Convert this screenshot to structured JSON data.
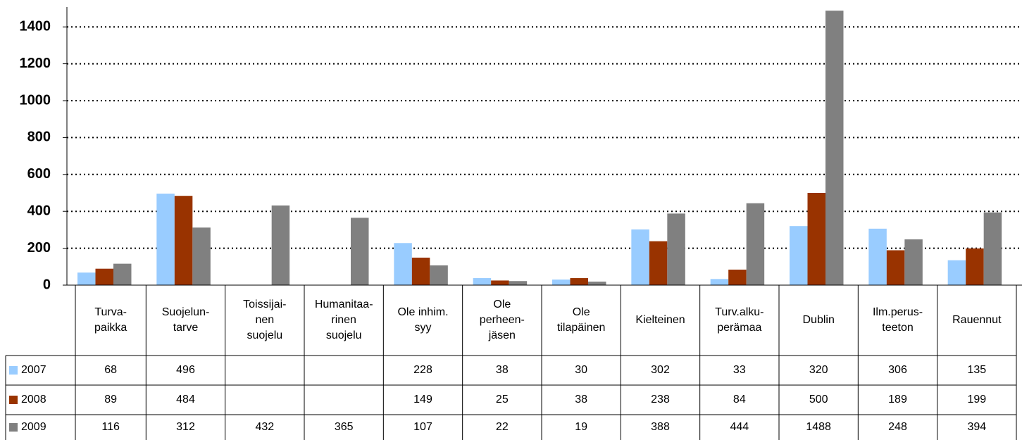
{
  "chart_data": {
    "type": "bar",
    "categories": [
      "Turva-\npaikka",
      "Suojelun-\ntarve",
      "Toissijai-\nnen\nsuojelu",
      "Humanitaa-\nrinen\nsuojelu",
      "Ole inhim.\nsyy",
      "Ole\nperheen-\njäsen",
      "Ole\ntilapäinen",
      "Kielteinen",
      "Turv.alku-\nperämaa",
      "Dublin",
      "Ilm.perus-\nteeton",
      "Rauennut"
    ],
    "series": [
      {
        "name": "2007",
        "color": "#99ccff",
        "values": [
          68,
          496,
          null,
          null,
          228,
          38,
          30,
          302,
          33,
          320,
          306,
          135
        ]
      },
      {
        "name": "2008",
        "color": "#993300",
        "values": [
          89,
          484,
          null,
          null,
          149,
          25,
          38,
          238,
          84,
          500,
          189,
          199
        ]
      },
      {
        "name": "2009",
        "color": "#808080",
        "values": [
          116,
          312,
          432,
          365,
          107,
          22,
          19,
          388,
          444,
          1488,
          248,
          394
        ]
      }
    ],
    "ylim": [
      0,
      1500
    ],
    "yticks": [
      0,
      200,
      400,
      600,
      800,
      1000,
      1200,
      1400
    ],
    "grid": true,
    "data_table": true
  }
}
